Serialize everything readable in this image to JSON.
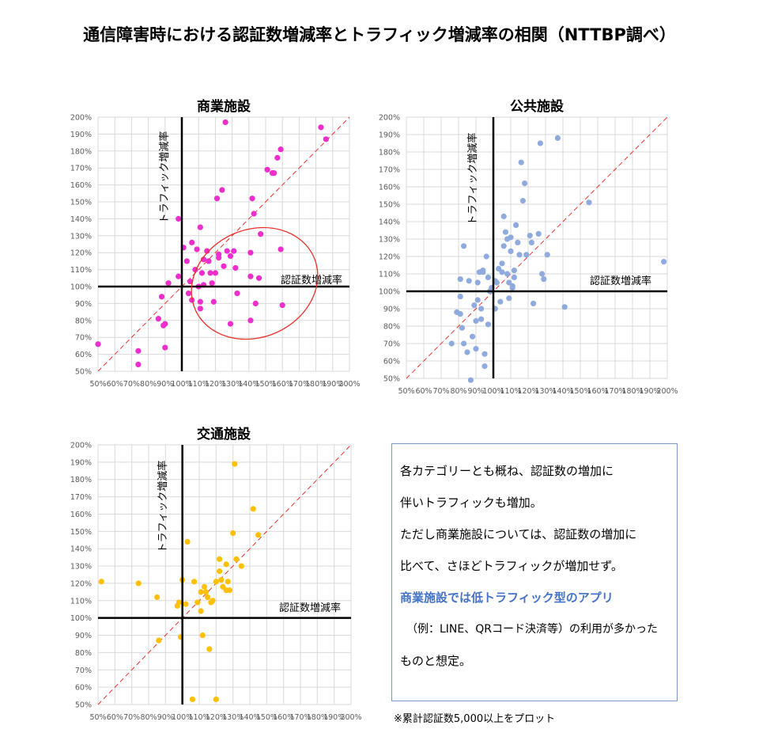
{
  "title": "通信障害時における認証数増減率とトラフィック増減率の相関（NTTBP調べ）",
  "colors": {
    "commercial": "#ee2ecc",
    "public": "#8faadc",
    "transport": "#ffc000",
    "diag": "#e8312b",
    "grid": "#d9d9d9"
  },
  "chart_data": [
    {
      "type": "scatter",
      "title": "商業施設",
      "xlabel": "認証数増減率",
      "ylabel": "トラフィック増減率",
      "xlim": [
        50,
        200
      ],
      "ylim": [
        50,
        200
      ],
      "x_ticks": [
        "50%",
        "60%",
        "70%",
        "80%",
        "90%",
        "100%",
        "110%",
        "120%",
        "130%",
        "140%",
        "150%",
        "160%",
        "170%",
        "180%",
        "190%",
        "200%"
      ],
      "y_ticks": [
        "50%",
        "60%",
        "70%",
        "80%",
        "90%",
        "100%",
        "110%",
        "120%",
        "130%",
        "140%",
        "150%",
        "160%",
        "170%",
        "180%",
        "190%",
        "200%"
      ],
      "reference_lines": [
        "x=100%",
        "y=100%",
        "y=x"
      ],
      "annotation": "red ellipse around points with x>110% and y<130%",
      "points": [
        [
          50,
          66
        ],
        [
          74,
          62
        ],
        [
          74,
          54
        ],
        [
          86,
          81
        ],
        [
          88,
          94
        ],
        [
          89,
          77
        ],
        [
          90,
          64
        ],
        [
          90,
          78
        ],
        [
          92,
          102
        ],
        [
          98,
          140
        ],
        [
          98,
          106
        ],
        [
          101,
          123
        ],
        [
          103,
          115
        ],
        [
          104,
          96
        ],
        [
          105,
          103
        ],
        [
          106,
          92
        ],
        [
          106,
          126
        ],
        [
          108,
          110
        ],
        [
          109,
          122
        ],
        [
          110,
          100
        ],
        [
          111,
          135
        ],
        [
          111,
          91
        ],
        [
          111,
          87
        ],
        [
          112,
          108
        ],
        [
          113,
          116
        ],
        [
          113,
          101
        ],
        [
          115,
          121
        ],
        [
          116,
          115
        ],
        [
          117,
          108
        ],
        [
          118,
          102
        ],
        [
          119,
          91
        ],
        [
          120,
          108
        ],
        [
          121,
          152
        ],
        [
          122,
          117
        ],
        [
          122,
          119
        ],
        [
          124,
          157
        ],
        [
          125,
          112
        ],
        [
          126,
          197
        ],
        [
          127,
          121
        ],
        [
          129,
          118
        ],
        [
          129,
          78
        ],
        [
          131,
          121
        ],
        [
          132,
          111
        ],
        [
          133,
          96
        ],
        [
          141,
          120
        ],
        [
          141,
          106
        ],
        [
          141,
          80
        ],
        [
          142,
          152
        ],
        [
          143,
          143
        ],
        [
          144,
          90
        ],
        [
          146,
          105
        ],
        [
          147,
          131
        ],
        [
          151,
          169
        ],
        [
          154,
          167
        ],
        [
          155,
          167
        ],
        [
          157,
          176
        ],
        [
          159,
          122
        ],
        [
          159,
          181
        ],
        [
          160,
          89
        ],
        [
          183,
          194
        ],
        [
          186,
          187
        ]
      ]
    },
    {
      "type": "scatter",
      "title": "公共施設",
      "xlabel": "認証数増減率",
      "ylabel": "トラフィック増減率",
      "xlim": [
        50,
        200
      ],
      "ylim": [
        50,
        200
      ],
      "x_ticks": [
        "50%",
        "60%",
        "70%",
        "80%",
        "90%",
        "100%",
        "110%",
        "120%",
        "130%",
        "140%",
        "150%",
        "160%",
        "170%",
        "180%",
        "190%",
        "200%"
      ],
      "y_ticks": [
        "50%",
        "60%",
        "70%",
        "80%",
        "90%",
        "100%",
        "110%",
        "120%",
        "130%",
        "140%",
        "150%",
        "160%",
        "170%",
        "180%",
        "190%",
        "200%"
      ],
      "reference_lines": [
        "x=100%",
        "y=100%",
        "y=x"
      ],
      "points": [
        [
          76,
          70
        ],
        [
          79,
          88
        ],
        [
          81,
          97
        ],
        [
          81,
          87
        ],
        [
          81,
          107
        ],
        [
          82,
          79
        ],
        [
          83,
          70
        ],
        [
          83,
          126
        ],
        [
          85,
          65
        ],
        [
          86,
          106
        ],
        [
          87,
          49
        ],
        [
          88,
          74
        ],
        [
          89,
          92
        ],
        [
          90,
          83
        ],
        [
          90,
          67
        ],
        [
          91,
          95
        ],
        [
          91,
          105
        ],
        [
          92,
          111
        ],
        [
          93,
          84
        ],
        [
          93,
          90
        ],
        [
          94,
          112
        ],
        [
          94,
          111
        ],
        [
          95,
          57
        ],
        [
          95,
          64
        ],
        [
          96,
          120
        ],
        [
          97,
          108
        ],
        [
          97,
          81
        ],
        [
          98,
          100
        ],
        [
          99,
          102
        ],
        [
          101,
          106
        ],
        [
          101,
          90
        ],
        [
          102,
          105
        ],
        [
          103,
          113
        ],
        [
          104,
          94
        ],
        [
          105,
          116
        ],
        [
          105,
          111
        ],
        [
          106,
          126
        ],
        [
          106,
          143
        ],
        [
          107,
          134
        ],
        [
          108,
          130
        ],
        [
          108,
          110
        ],
        [
          109,
          105
        ],
        [
          109,
          96
        ],
        [
          110,
          123
        ],
        [
          110,
          131
        ],
        [
          111,
          102
        ],
        [
          111,
          103
        ],
        [
          112,
          108
        ],
        [
          112,
          112
        ],
        [
          113,
          138
        ],
        [
          114,
          128
        ],
        [
          115,
          121
        ],
        [
          116,
          174
        ],
        [
          117,
          152
        ],
        [
          118,
          162
        ],
        [
          119,
          121
        ],
        [
          121,
          132
        ],
        [
          122,
          128
        ],
        [
          123,
          93
        ],
        [
          126,
          133
        ],
        [
          127,
          185
        ],
        [
          128,
          110
        ],
        [
          129,
          107
        ],
        [
          131,
          121
        ],
        [
          137,
          188
        ],
        [
          141,
          91
        ],
        [
          155,
          151
        ],
        [
          198,
          117
        ]
      ]
    },
    {
      "type": "scatter",
      "title": "交通施設",
      "xlabel": "認証数増減率",
      "ylabel": "トラフィック増減率",
      "xlim": [
        50,
        200
      ],
      "ylim": [
        50,
        200
      ],
      "x_ticks": [
        "50%",
        "60%",
        "70%",
        "80%",
        "90%",
        "100%",
        "110%",
        "120%",
        "130%",
        "140%",
        "150%",
        "160%",
        "170%",
        "180%",
        "190%",
        "200%"
      ],
      "y_ticks": [
        "50%",
        "60%",
        "70%",
        "80%",
        "90%",
        "100%",
        "110%",
        "120%",
        "130%",
        "140%",
        "150%",
        "160%",
        "170%",
        "180%",
        "190%",
        "200%"
      ],
      "reference_lines": [
        "x=100%",
        "y=100%",
        "y=x"
      ],
      "points": [
        [
          52,
          121
        ],
        [
          74,
          120
        ],
        [
          85,
          112
        ],
        [
          86,
          87
        ],
        [
          97,
          107
        ],
        [
          98,
          109
        ],
        [
          99,
          89
        ],
        [
          100,
          122
        ],
        [
          102,
          108
        ],
        [
          103,
          144
        ],
        [
          106,
          53
        ],
        [
          107,
          121
        ],
        [
          109,
          109
        ],
        [
          111,
          115
        ],
        [
          111,
          104
        ],
        [
          112,
          90
        ],
        [
          113,
          118
        ],
        [
          114,
          115
        ],
        [
          115,
          112
        ],
        [
          116,
          82
        ],
        [
          117,
          109
        ],
        [
          118,
          110
        ],
        [
          120,
          53
        ],
        [
          120,
          121
        ],
        [
          122,
          127
        ],
        [
          122,
          134
        ],
        [
          123,
          122
        ],
        [
          124,
          118
        ],
        [
          126,
          116
        ],
        [
          126,
          131
        ],
        [
          127,
          121
        ],
        [
          128,
          116
        ],
        [
          130,
          149
        ],
        [
          131,
          189
        ],
        [
          132,
          134
        ],
        [
          135,
          130
        ],
        [
          142,
          163
        ],
        [
          145,
          148
        ]
      ]
    }
  ],
  "note": {
    "lines": [
      "各カテゴリーとも概ね、認証数の増加に",
      "伴いトラフィックも増加。",
      "ただし商業施設については、認証数の増加に",
      "比べて、さほどトラフィックが増加せず。"
    ],
    "highlight": "商業施設では低トラフィック型のアプリ",
    "example": "（例：LINE、QRコード決済等）の利用が多かった",
    "tail": "ものと想定。"
  },
  "footnote": "※累計認証数5,000以上をプロット"
}
